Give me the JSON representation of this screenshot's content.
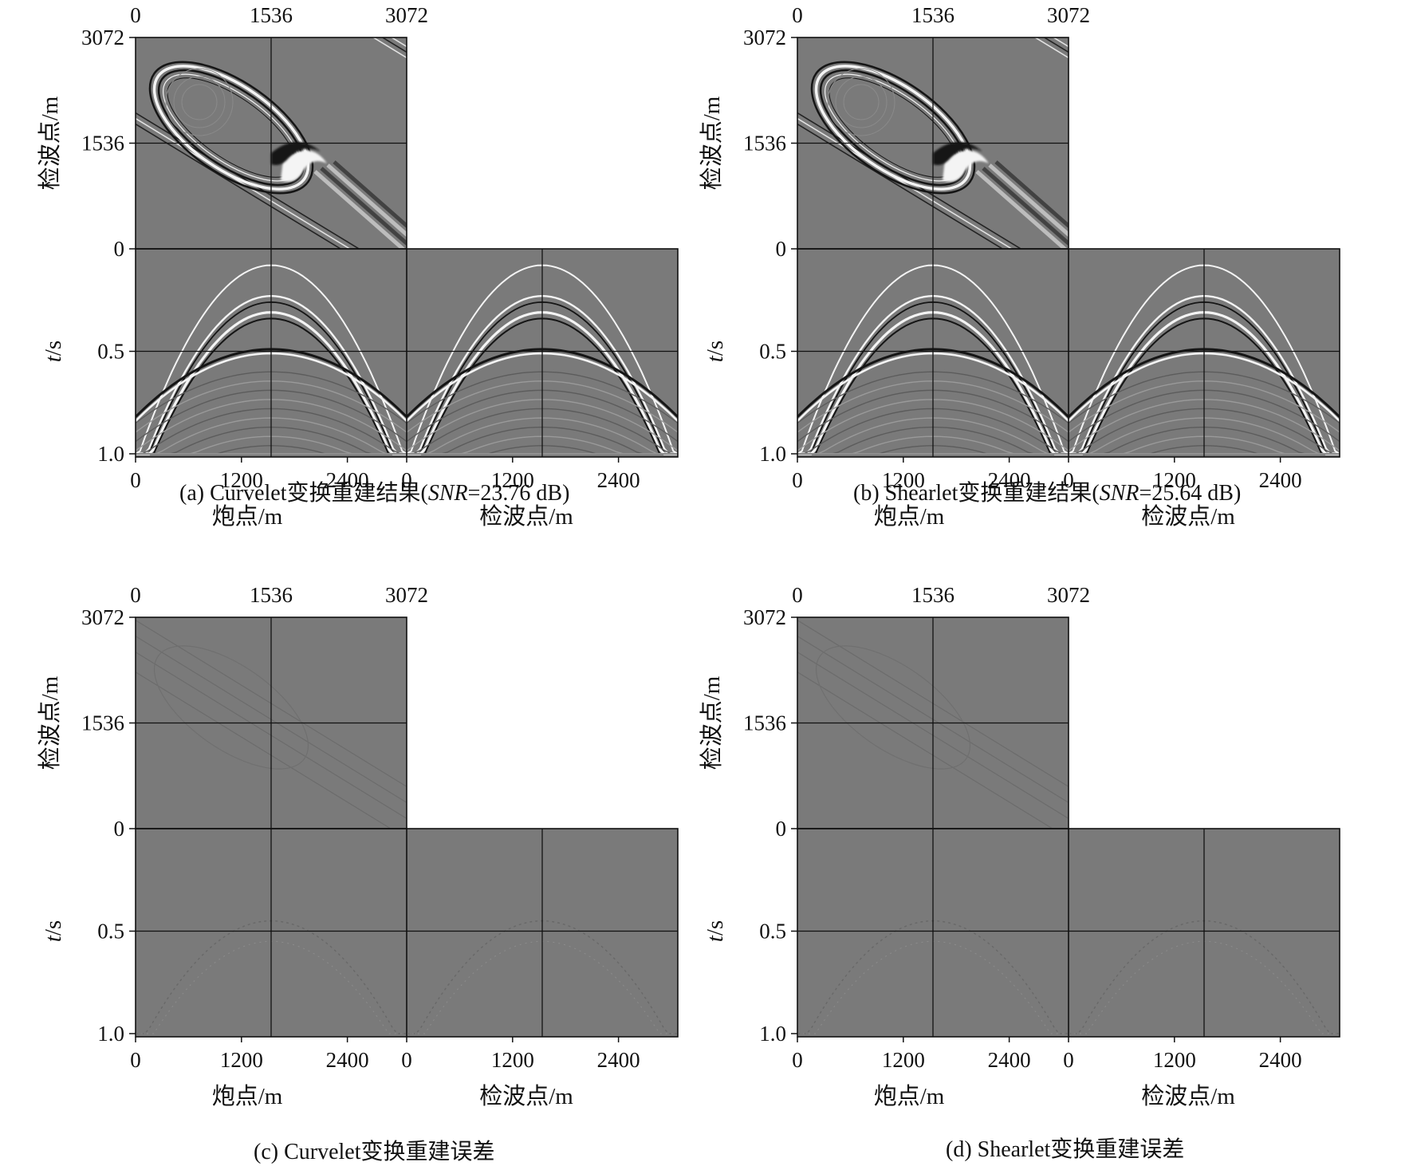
{
  "chart_data": [
    {
      "type": "heatmap",
      "caption": {
        "prefix": "(a) Curvelet变换重建结果(",
        "snr_label": "SNR",
        "snr_rest": "=23.76 dB)"
      },
      "top_x_ticks": [
        "0",
        "1536",
        "3072"
      ],
      "top_y_ticks": [
        "3072",
        "1536",
        "0"
      ],
      "top_ylabel": "检波点/m",
      "bottom_y_ticks": [
        "0.5",
        "1.0"
      ],
      "bottom_ylabel_italic": "t",
      "bottom_ylabel_rest": "/s",
      "shot_x_ticks": [
        "0",
        "1200",
        "2400"
      ],
      "receiver_x_ticks": [
        "0",
        "1200",
        "2400"
      ],
      "shot_xlabel": "炮点/m",
      "receiver_xlabel": "检波点/m",
      "content": "reconstruction"
    },
    {
      "type": "heatmap",
      "caption": {
        "prefix": "(b) Shearlet变换重建结果(",
        "snr_label": "SNR",
        "snr_rest": "=25.64 dB)"
      },
      "top_x_ticks": [
        "0",
        "1536",
        "3072"
      ],
      "top_y_ticks": [
        "3072",
        "1536",
        "0"
      ],
      "top_ylabel": "检波点/m",
      "bottom_y_ticks": [
        "0.5",
        "1.0"
      ],
      "bottom_ylabel_italic": "t",
      "bottom_ylabel_rest": "/s",
      "shot_x_ticks": [
        "0",
        "1200",
        "2400"
      ],
      "receiver_x_ticks": [
        "0",
        "1200",
        "2400"
      ],
      "shot_xlabel": "炮点/m",
      "receiver_xlabel": "检波点/m",
      "content": "reconstruction"
    },
    {
      "type": "heatmap",
      "caption": {
        "prefix": "(c) Curvelet变换重建误差",
        "snr_label": "",
        "snr_rest": ""
      },
      "top_x_ticks": [
        "0",
        "1536",
        "3072"
      ],
      "top_y_ticks": [
        "3072",
        "1536",
        "0"
      ],
      "top_ylabel": "检波点/m",
      "bottom_y_ticks": [
        "0.5",
        "1.0"
      ],
      "bottom_ylabel_italic": "t",
      "bottom_ylabel_rest": "/s",
      "shot_x_ticks": [
        "0",
        "1200",
        "2400"
      ],
      "receiver_x_ticks": [
        "0",
        "1200",
        "2400"
      ],
      "shot_xlabel": "炮点/m",
      "receiver_xlabel": "检波点/m",
      "content": "error"
    },
    {
      "type": "heatmap",
      "caption": {
        "prefix": "(d) Shearlet变换重建误差",
        "snr_label": "",
        "snr_rest": ""
      },
      "top_x_ticks": [
        "0",
        "1536",
        "3072"
      ],
      "top_y_ticks": [
        "3072",
        "1536",
        "0"
      ],
      "top_ylabel": "检波点/m",
      "bottom_y_ticks": [
        "0.5",
        "1.0"
      ],
      "bottom_ylabel_italic": "t",
      "bottom_ylabel_rest": "/s",
      "shot_x_ticks": [
        "0",
        "1200",
        "2400"
      ],
      "receiver_x_ticks": [
        "0",
        "1200",
        "2400"
      ],
      "shot_xlabel": "炮点/m",
      "receiver_xlabel": "检波点/m",
      "content": "error"
    }
  ],
  "colors": {
    "background_gray": "#7a7a7a",
    "frame": "#111111",
    "wave_light": "#f4f4f4",
    "wave_dark": "#151515"
  }
}
